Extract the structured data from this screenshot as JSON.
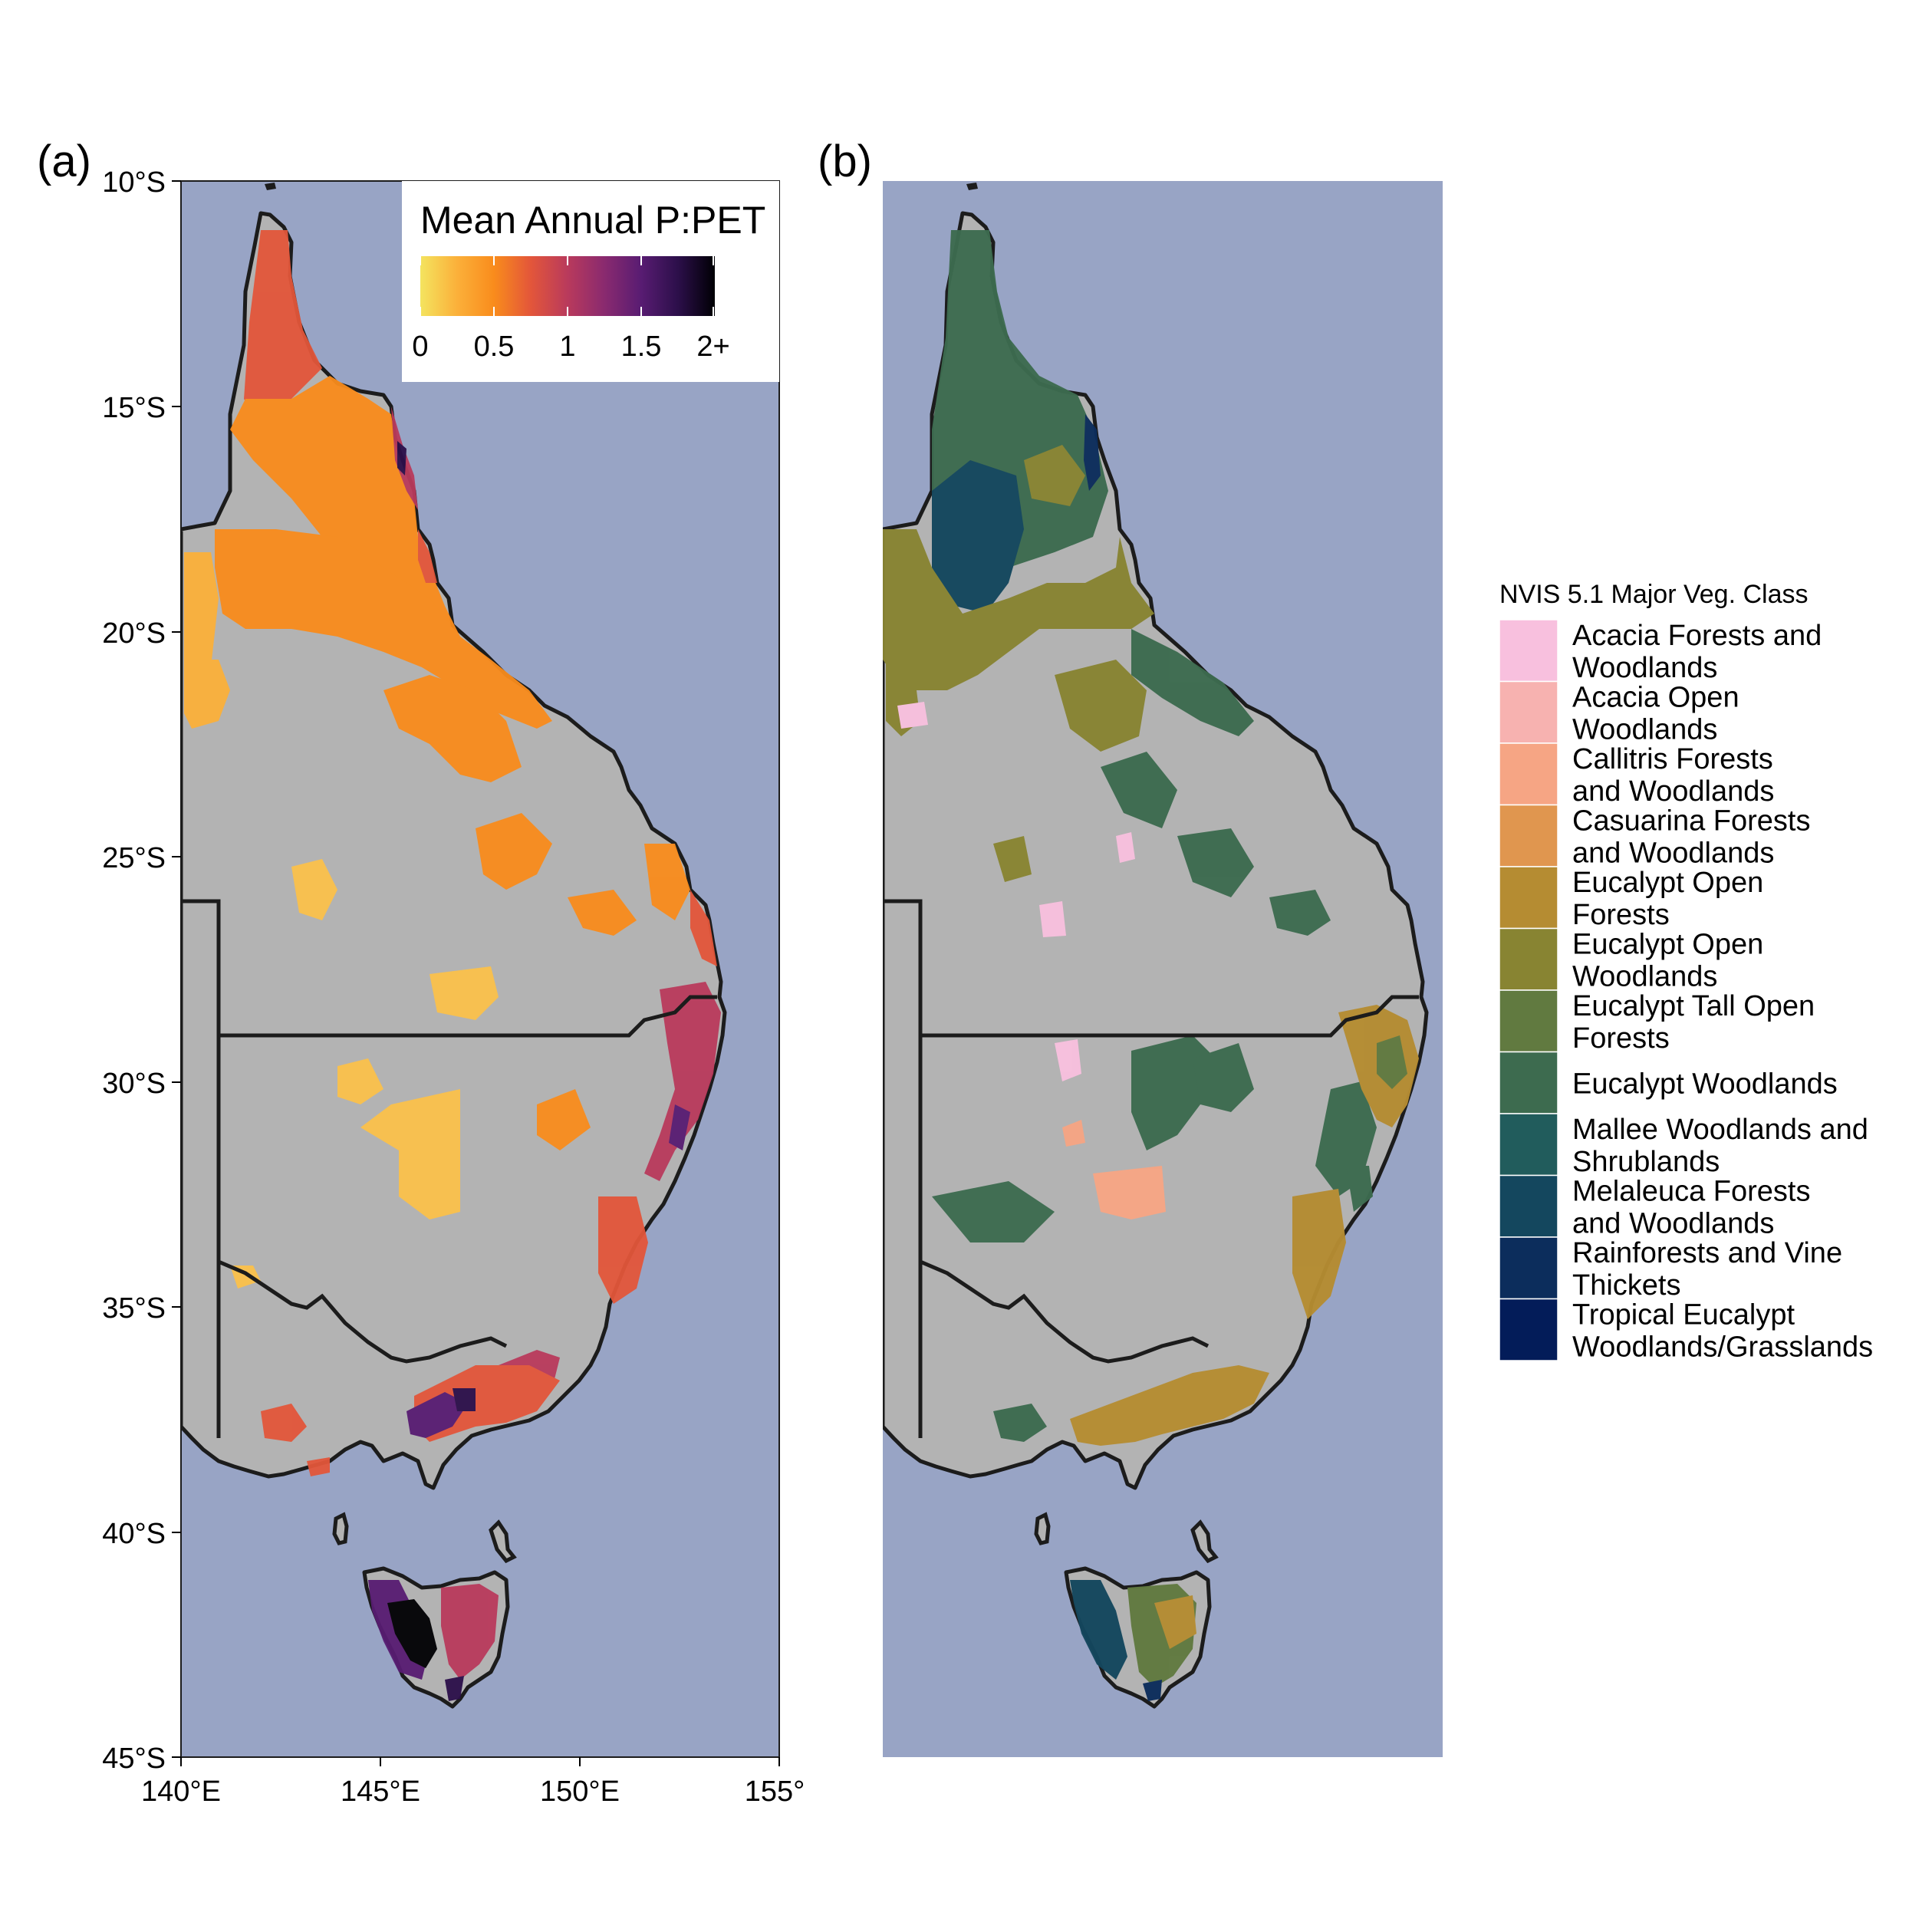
{
  "panel_a": {
    "label": "(a)",
    "y_ticks": [
      "10°S",
      "15°S",
      "20°S",
      "25°S",
      "30°S",
      "35°S",
      "40°S",
      "45°S"
    ],
    "x_ticks": [
      "140°E",
      "145°E",
      "150°E",
      "155°"
    ],
    "legend": {
      "title": "Mean Annual P:PET",
      "tick_labels": [
        "0",
        "0.5",
        "1",
        "1.5",
        "2+"
      ],
      "colors": [
        "#f4e45f",
        "#fbb03a",
        "#f98c1c",
        "#e3563a",
        "#b93a5c",
        "#8a2a6f",
        "#581c72",
        "#2c0f4a",
        "#000004"
      ]
    }
  },
  "panel_b": {
    "label": "(b)",
    "legend": {
      "title": "NVIS 5.1 Major Veg. Class",
      "items": [
        {
          "line1": "Acacia Forests and",
          "line2": "Woodlands",
          "color": "#f8c0de"
        },
        {
          "line1": "Acacia Open",
          "line2": "Woodlands",
          "color": "#f7b2b0"
        },
        {
          "line1": "Callitris Forests",
          "line2": "and Woodlands",
          "color": "#f6a584"
        },
        {
          "line1": "Casuarina Forests",
          "line2": "and Woodlands",
          "color": "#e0964f"
        },
        {
          "line1": "Eucalypt Open",
          "line2": "Forests",
          "color": "#b58c32"
        },
        {
          "line1": "Eucalypt Open",
          "line2": "Woodlands",
          "color": "#888432"
        },
        {
          "line1": "Eucalypt Tall Open",
          "line2": "Forests",
          "color": "#617a40"
        },
        {
          "line1": "Eucalypt Woodlands",
          "line2": "",
          "color": "#3d6b4f"
        },
        {
          "line1": "Mallee Woodlands and",
          "line2": "Shrublands",
          "color": "#215c5c"
        },
        {
          "line1": "Melaleuca Forests",
          "line2": "and Woodlands",
          "color": "#14475e"
        },
        {
          "line1": "Rainforests and Vine",
          "line2": "Thickets",
          "color": "#0c2d5c"
        },
        {
          "line1": "Tropical Eucalypt",
          "line2": "Woodlands/Grasslands",
          "color": "#031c59"
        }
      ]
    }
  },
  "colors": {
    "ocean": "#98a4c5",
    "land_nodata": "#b3b3b3",
    "coastline": "#1c1c1c"
  }
}
